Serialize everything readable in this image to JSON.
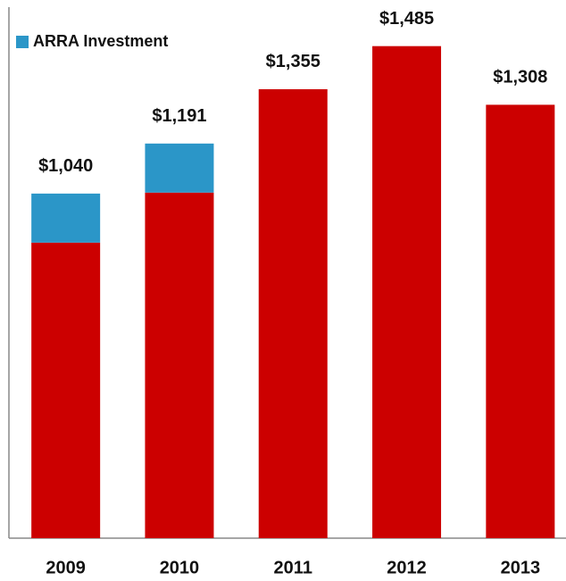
{
  "chart_data": {
    "type": "bar",
    "stacked": true,
    "categories": [
      "2009",
      "2010",
      "2011",
      "2012",
      "2013"
    ],
    "series": [
      {
        "color": "#cc0000",
        "values": [
          892,
          1043,
          1355,
          1485,
          1308
        ]
      },
      {
        "name": "ARRA Investment",
        "color": "#2b96c8",
        "values": [
          148,
          148,
          0,
          0,
          0
        ]
      }
    ],
    "totals": [
      1040,
      1191,
      1355,
      1485,
      1308
    ],
    "total_labels": [
      "$1,040",
      "$1,191",
      "$1,355",
      "$1,485",
      "$1,308"
    ],
    "ylim": [
      0,
      1600
    ],
    "legend": "top-left"
  }
}
